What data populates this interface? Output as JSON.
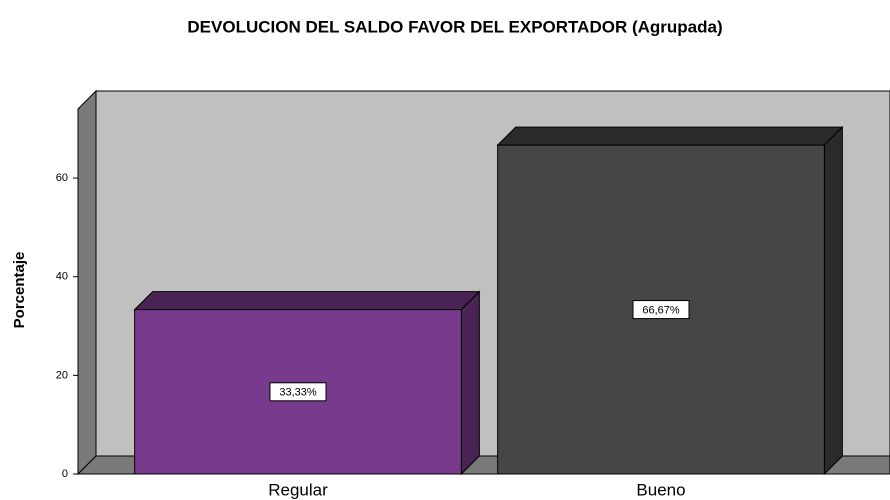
{
  "chart_data": {
    "type": "bar3d",
    "title": "DEVOLUCION DEL SALDO FAVOR DEL EXPORTADOR  (Agrupada)",
    "y_label": "Porcentaje",
    "categories": [
      "Regular",
      "Bueno"
    ],
    "values": [
      33.33,
      66.67
    ],
    "value_labels": [
      "33,33%",
      "66,67%"
    ],
    "colors": [
      "#783a8c",
      "#464646"
    ],
    "ylim": [
      0,
      74
    ],
    "yticks": [
      0,
      20,
      40,
      60
    ]
  }
}
